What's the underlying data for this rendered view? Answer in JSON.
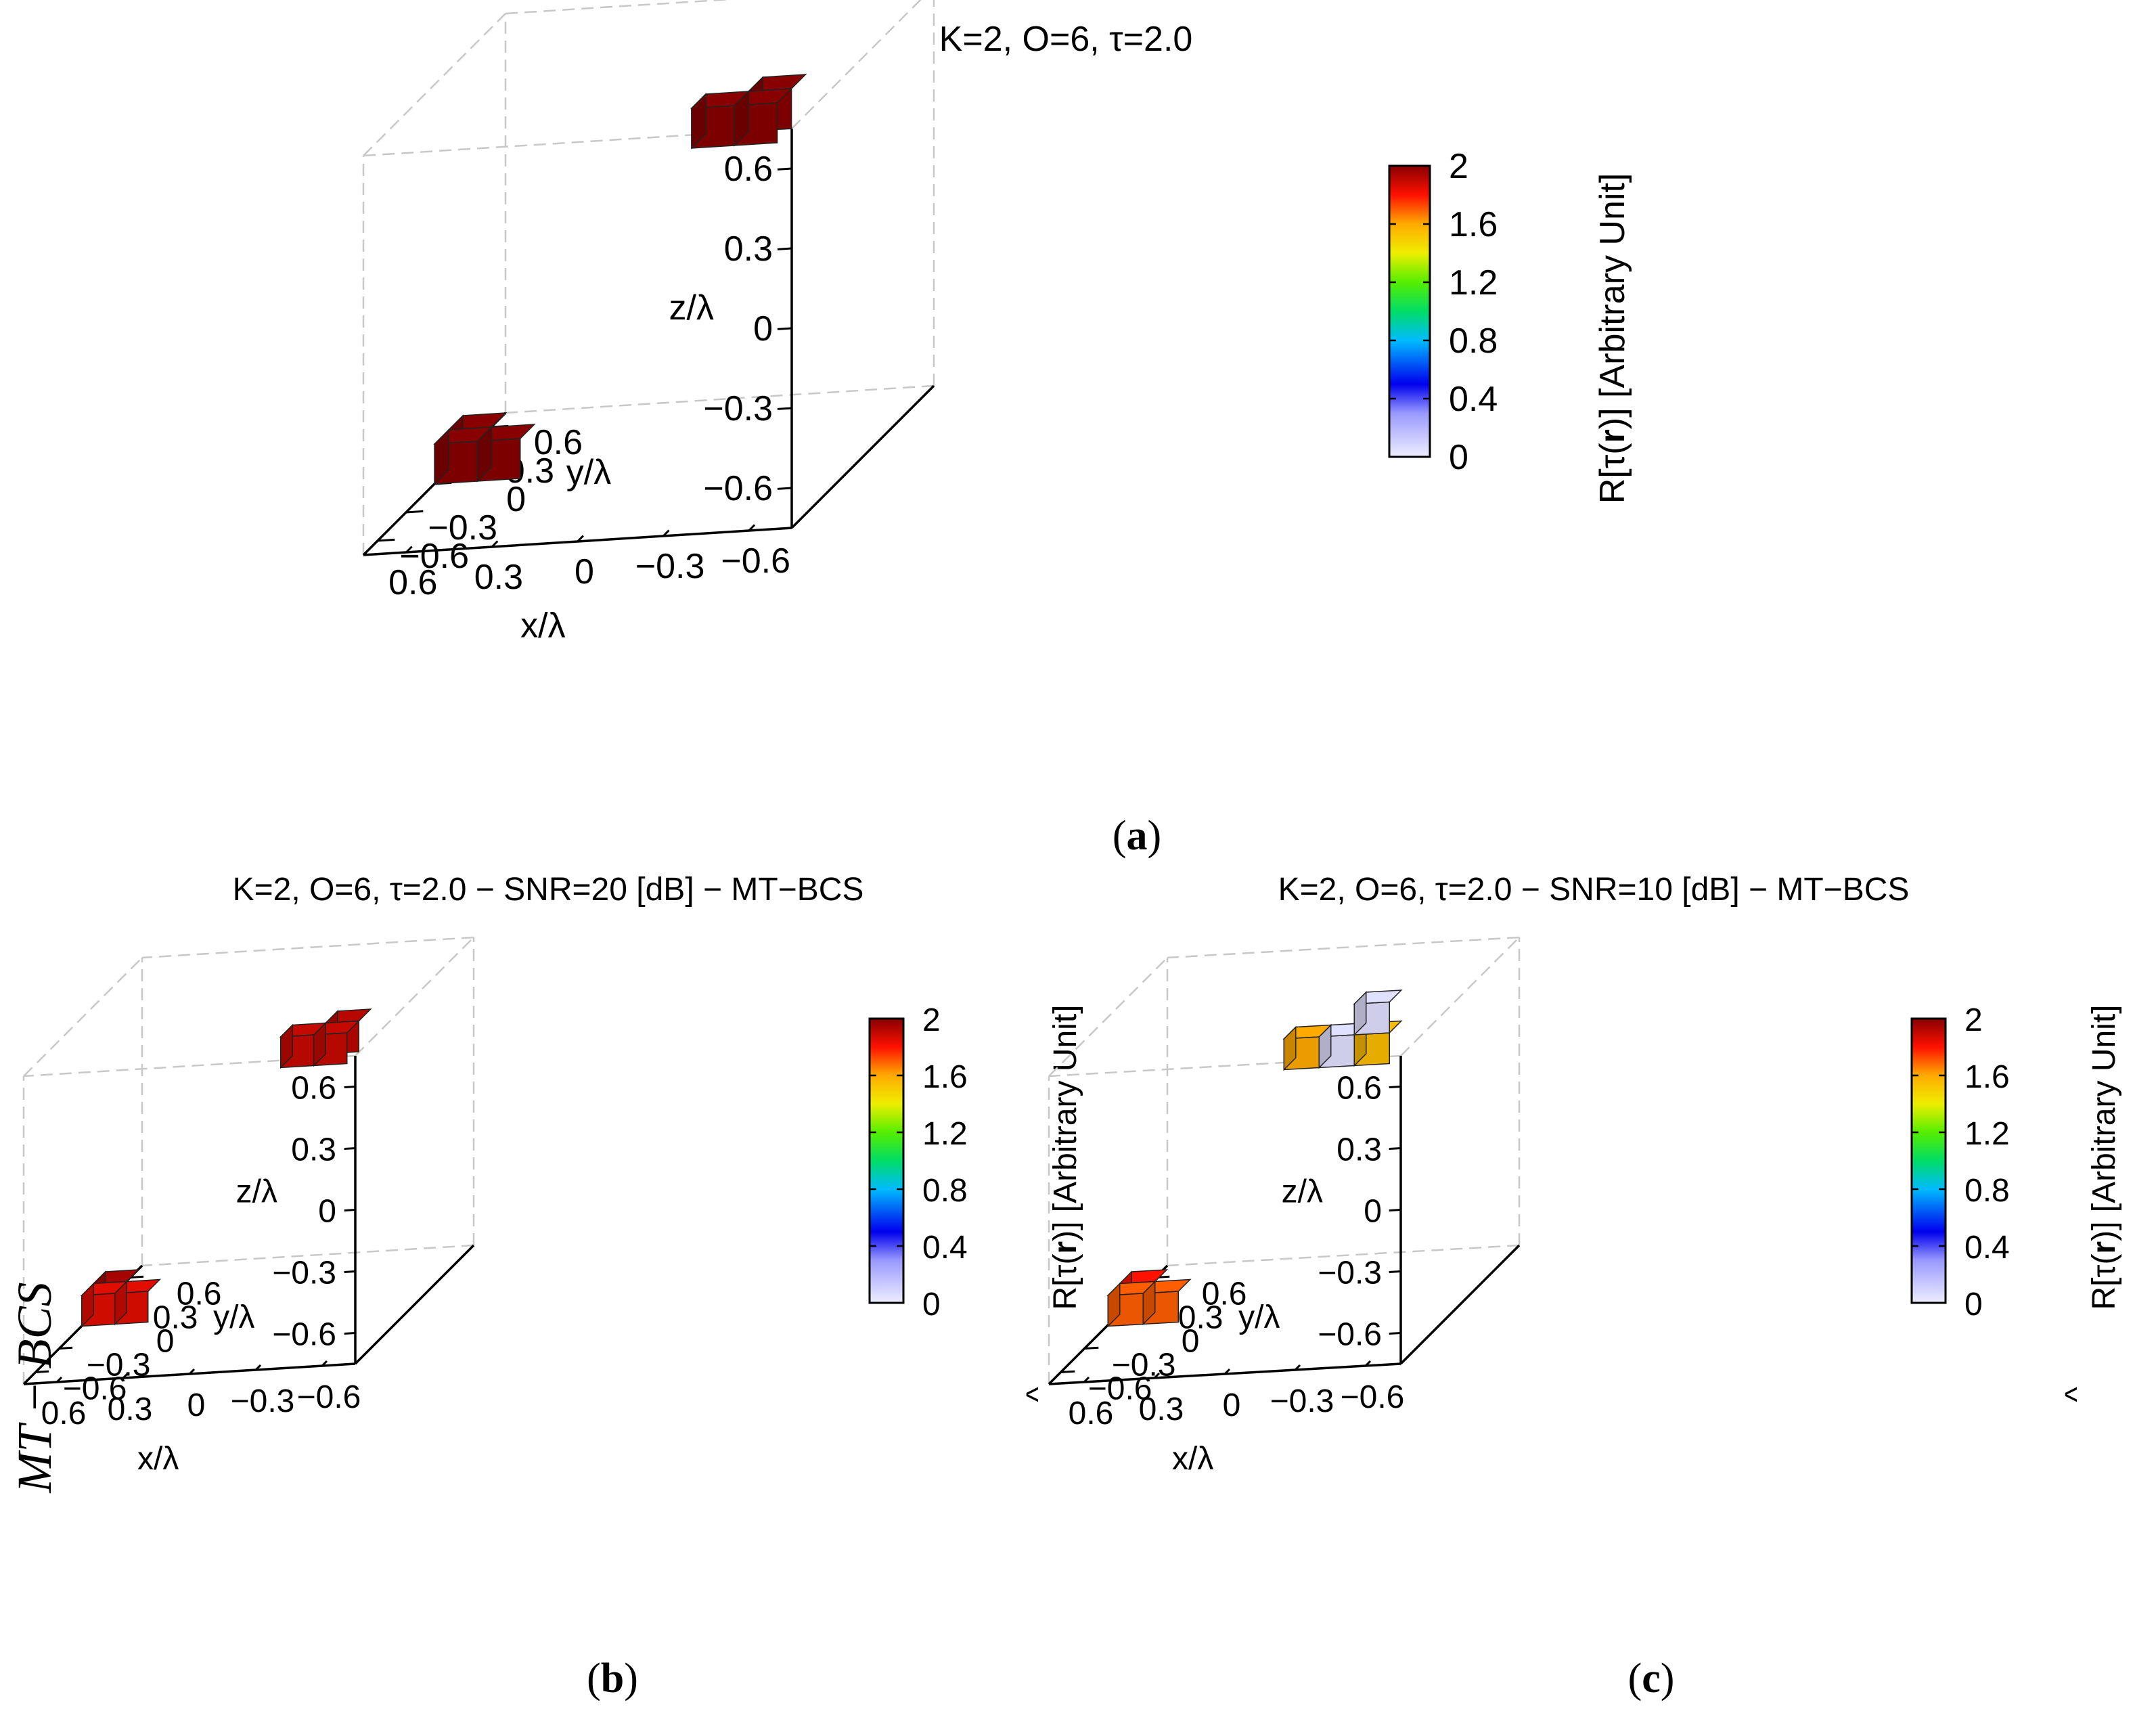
{
  "figure": {
    "side_label": "MT − BCS",
    "panels": [
      {
        "caption_letter": "a",
        "chart_data": {
          "type": "3d-voxel",
          "title": "K=2, O=6, τ=2.0",
          "xlabel": "x/λ",
          "ylabel": "y/λ",
          "zlabel": "z/λ",
          "xticks": [
            "−0.6",
            "−0.3",
            "0",
            "0.3",
            "0.6"
          ],
          "yticks": [
            "−0.6",
            "−0.3",
            "0",
            "0.3",
            "0.6"
          ],
          "zticks": [
            "−0.6",
            "−0.3",
            "0",
            "0.3",
            "0.6"
          ],
          "xlim": [
            -0.75,
            0.75
          ],
          "ylim": [
            -0.75,
            0.75
          ],
          "zlim": [
            -0.75,
            0.75
          ],
          "colorbar": {
            "label_main": "R[τ(",
            "label_bold": "r",
            "label_end": ")] [Arbitrary Unit]",
            "hat": false,
            "ticks": [
              "0",
              "0.4",
              "0.8",
              "1.2",
              "1.6",
              "2"
            ],
            "range": [
              0,
              2
            ]
          },
          "voxels": [
            {
              "x": -0.45,
              "y": -0.15,
              "z": 0.6,
              "value": 2.0
            },
            {
              "x": -0.3,
              "y": -0.15,
              "z": 0.6,
              "value": 2.0
            },
            {
              "x": -0.45,
              "y": 0.0,
              "z": 0.6,
              "value": 2.0
            },
            {
              "x": 0.45,
              "y": -0.15,
              "z": -0.6,
              "value": 2.0
            },
            {
              "x": 0.6,
              "y": -0.15,
              "z": -0.6,
              "value": 2.0
            },
            {
              "x": 0.6,
              "y": 0.0,
              "z": -0.6,
              "value": 2.0
            }
          ]
        }
      },
      {
        "caption_letter": "b",
        "chart_data": {
          "type": "3d-voxel",
          "title": "K=2, O=6, τ=2.0 − SNR=20 [dB] − MT−BCS",
          "xlabel": "x/λ",
          "ylabel": "y/λ",
          "zlabel": "z/λ",
          "xticks": [
            "−0.6",
            "−0.3",
            "0",
            "0.3",
            "0.6"
          ],
          "yticks": [
            "−0.6",
            "−0.3",
            "0",
            "0.3",
            "0.6"
          ],
          "zticks": [
            "−0.6",
            "−0.3",
            "0",
            "0.3",
            "0.6"
          ],
          "xlim": [
            -0.75,
            0.75
          ],
          "ylim": [
            -0.75,
            0.75
          ],
          "zlim": [
            -0.75,
            0.75
          ],
          "colorbar": {
            "label_main": "R[τ(",
            "label_bold": "r",
            "label_end": ")] [Arbitrary Unit]",
            "hat": true,
            "ticks": [
              "0",
              "0.4",
              "0.8",
              "1.2",
              "1.6",
              "2"
            ],
            "range": [
              0,
              2
            ]
          },
          "voxels": [
            {
              "x": -0.45,
              "y": -0.15,
              "z": 0.6,
              "value": 1.9
            },
            {
              "x": -0.3,
              "y": -0.15,
              "z": 0.6,
              "value": 1.9
            },
            {
              "x": -0.45,
              "y": 0.0,
              "z": 0.6,
              "value": 1.92
            },
            {
              "x": 0.45,
              "y": -0.15,
              "z": -0.6,
              "value": 1.85
            },
            {
              "x": 0.6,
              "y": -0.15,
              "z": -0.6,
              "value": 1.85
            },
            {
              "x": 0.6,
              "y": 0.0,
              "z": -0.6,
              "value": 1.95
            }
          ]
        }
      },
      {
        "caption_letter": "c",
        "chart_data": {
          "type": "3d-voxel",
          "title": "K=2, O=6, τ=2.0 − SNR=10 [dB] − MT−BCS",
          "xlabel": "x/λ",
          "ylabel": "y/λ",
          "zlabel": "z/λ",
          "xticks": [
            "−0.6",
            "−0.3",
            "0",
            "0.3",
            "0.6"
          ],
          "yticks": [
            "−0.6",
            "−0.3",
            "0",
            "0.3",
            "0.6"
          ],
          "zticks": [
            "−0.6",
            "−0.3",
            "0",
            "0.3",
            "0.6"
          ],
          "xlim": [
            -0.75,
            0.75
          ],
          "ylim": [
            -0.75,
            0.75
          ],
          "zlim": [
            -0.75,
            0.75
          ],
          "colorbar": {
            "label_main": "R[τ(",
            "label_bold": "r",
            "label_end": ")] [Arbitrary Unit]",
            "hat": true,
            "ticks": [
              "0",
              "0.4",
              "0.8",
              "1.2",
              "1.6",
              "2"
            ],
            "range": [
              0,
              2
            ]
          },
          "voxels": [
            {
              "x": -0.45,
              "y": -0.15,
              "z": 0.6,
              "value": 1.55
            },
            {
              "x": -0.3,
              "y": -0.15,
              "z": 0.6,
              "value": 0.05
            },
            {
              "x": -0.15,
              "y": -0.15,
              "z": 0.6,
              "value": 1.6
            },
            {
              "x": -0.45,
              "y": -0.15,
              "z": 0.75,
              "value": 0.05
            },
            {
              "x": 0.45,
              "y": -0.15,
              "z": -0.6,
              "value": 1.7
            },
            {
              "x": 0.6,
              "y": -0.15,
              "z": -0.6,
              "value": 1.7
            },
            {
              "x": 0.6,
              "y": 0.0,
              "z": -0.6,
              "value": 1.8
            }
          ]
        }
      }
    ]
  }
}
